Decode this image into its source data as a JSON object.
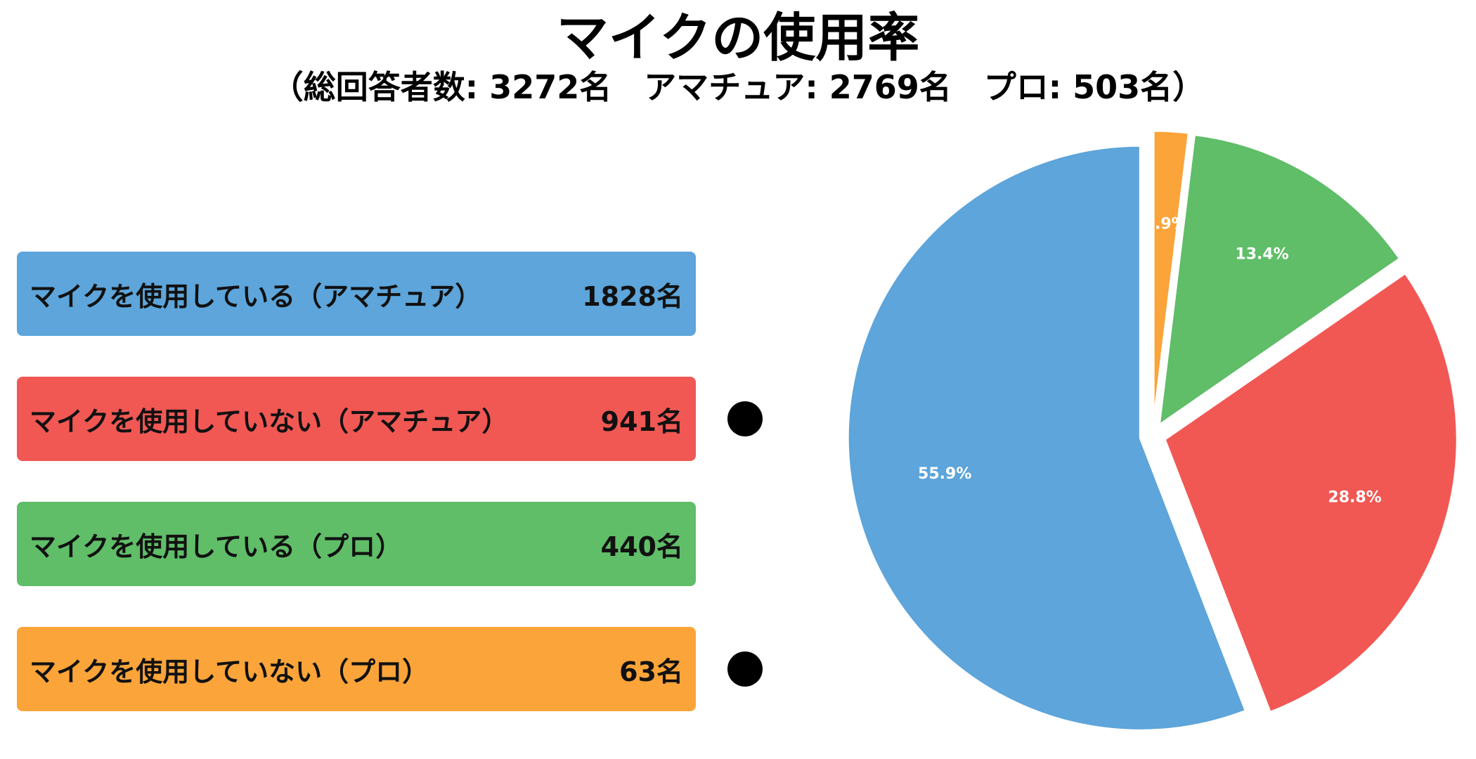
{
  "title": "マイクの使用率",
  "subtitle": "（総回答者数: 3272名　アマチュア: 2769名　プロ: 503名）",
  "legend": [
    {
      "label": "マイクを使用している（アマチュア）",
      "value": "1828名",
      "color": "#5DA5DA",
      "dot": false
    },
    {
      "label": "マイクを使用していない（アマチュア）",
      "value": "941名",
      "color": "#F15854",
      "dot": true
    },
    {
      "label": "マイクを使用している（プロ）",
      "value": "440名",
      "color": "#60BD68",
      "dot": false
    },
    {
      "label": "マイクを使用していない（プロ）",
      "value": "63名",
      "color": "#FAA43A",
      "dot": true
    }
  ],
  "chart_data": {
    "type": "pie",
    "title": "マイクの使用率",
    "start": "12 o'clock, clockwise",
    "exploded": true,
    "slices": [
      {
        "label": "マイクを使用していない（プロ）",
        "value": 63,
        "percent_label": "1.9%",
        "color": "#FAA43A"
      },
      {
        "label": "マイクを使用している（プロ）",
        "value": 440,
        "percent_label": "13.4%",
        "color": "#60BD68"
      },
      {
        "label": "マイクを使用していない（アマチュア）",
        "value": 941,
        "percent_label": "28.8%",
        "color": "#F15854"
      },
      {
        "label": "マイクを使用している（アマチュア）",
        "value": 1828,
        "percent_label": "55.9%",
        "color": "#5DA5DA"
      }
    ]
  }
}
